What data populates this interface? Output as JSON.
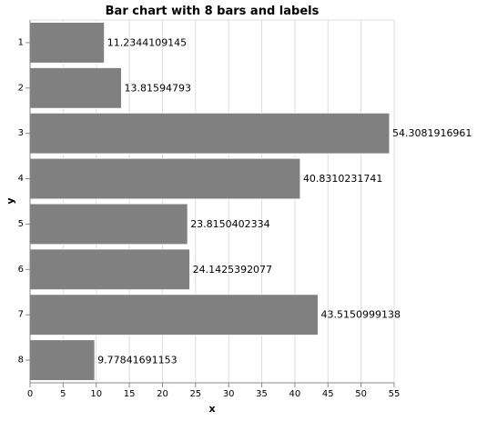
{
  "chart_data": {
    "type": "bar",
    "orientation": "horizontal",
    "title": "Bar chart with 8 bars and labels",
    "xlabel": "x",
    "ylabel": "y",
    "categories": [
      "1",
      "2",
      "3",
      "4",
      "5",
      "6",
      "7",
      "8"
    ],
    "values": [
      11.2344109145,
      13.81594793,
      54.3081916961,
      40.8310231741,
      23.8150402334,
      24.1425392077,
      43.5150999138,
      9.77841691153
    ],
    "data_labels": [
      "11.2344109145",
      "13.81594793",
      "54.3081916961",
      "40.8310231741",
      "23.8150402334",
      "24.1425392077",
      "43.5150999138",
      "9.77841691153"
    ],
    "xlim": [
      0,
      55
    ],
    "x_ticks": [
      0,
      5,
      10,
      15,
      20,
      25,
      30,
      35,
      40,
      45,
      50,
      55
    ],
    "grid": true,
    "legend": "none",
    "colors": {
      "bar": "#808080",
      "bar_stroke": "#ffffff",
      "grid": "#dddddd",
      "axis": "#888888"
    }
  }
}
